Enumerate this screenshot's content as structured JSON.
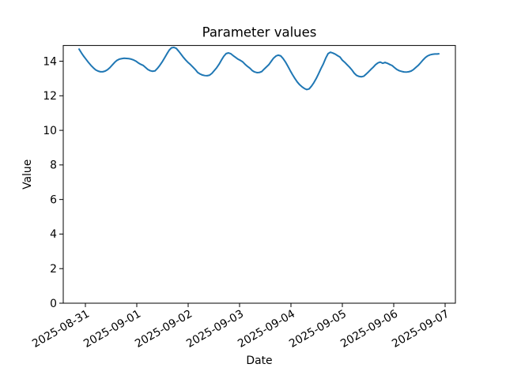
{
  "chart_data": {
    "type": "line",
    "title": "Parameter values",
    "xlabel": "Date",
    "ylabel": "Value",
    "line_color": "#1f77b4",
    "background_color": "#ffffff",
    "grid": false,
    "x_axis": {
      "unit": "days since 2025-08-31 00:00",
      "tick_labels": [
        "2025-08-31",
        "2025-09-01",
        "2025-09-02",
        "2025-09-03",
        "2025-09-04",
        "2025-09-05",
        "2025-09-06",
        "2025-09-07"
      ],
      "tick_positions_days": [
        0,
        1,
        2,
        3,
        4,
        5,
        6,
        7
      ],
      "xlim_days": [
        -0.431,
        7.2
      ],
      "tick_label_rotation_deg": -30
    },
    "y_axis": {
      "tick_values": [
        0,
        2,
        4,
        6,
        8,
        10,
        12,
        14
      ],
      "ylim": [
        0,
        14.91
      ]
    },
    "series": [
      {
        "name": "parameter-values",
        "x_days": [
          -0.123,
          -0.077,
          -0.031,
          0.015,
          0.062,
          0.108,
          0.154,
          0.2,
          0.246,
          0.292,
          0.338,
          0.385,
          0.431,
          0.477,
          0.523,
          0.569,
          0.615,
          0.662,
          0.708,
          0.754,
          0.8,
          0.846,
          0.892,
          0.938,
          0.985,
          1.031,
          1.077,
          1.123,
          1.169,
          1.215,
          1.262,
          1.308,
          1.354,
          1.4,
          1.446,
          1.492,
          1.538,
          1.585,
          1.631,
          1.677,
          1.723,
          1.769,
          1.815,
          1.862,
          1.908,
          1.954,
          2.0,
          2.046,
          2.092,
          2.138,
          2.185,
          2.231,
          2.277,
          2.323,
          2.369,
          2.415,
          2.462,
          2.508,
          2.554,
          2.6,
          2.646,
          2.692,
          2.738,
          2.785,
          2.831,
          2.877,
          2.923,
          2.969,
          3.015,
          3.062,
          3.108,
          3.154,
          3.2,
          3.246,
          3.292,
          3.338,
          3.385,
          3.431,
          3.477,
          3.523,
          3.569,
          3.615,
          3.662,
          3.708,
          3.754,
          3.8,
          3.846,
          3.892,
          3.938,
          3.985,
          4.031,
          4.077,
          4.123,
          4.169,
          4.215,
          4.262,
          4.308,
          4.354,
          4.4,
          4.446,
          4.492,
          4.538,
          4.585,
          4.631,
          4.677,
          4.723,
          4.769,
          4.815,
          4.862,
          4.908,
          4.954,
          5.0,
          5.046,
          5.092,
          5.138,
          5.185,
          5.231,
          5.277,
          5.323,
          5.369,
          5.415,
          5.462,
          5.508,
          5.554,
          5.6,
          5.646,
          5.692,
          5.738,
          5.785,
          5.831,
          5.877,
          5.923,
          5.969,
          6.015,
          6.062,
          6.108,
          6.154,
          6.2,
          6.246,
          6.292,
          6.338,
          6.385,
          6.431,
          6.477,
          6.523,
          6.569,
          6.615,
          6.662,
          6.708,
          6.754,
          6.8,
          6.846,
          6.877
        ],
        "values": [
          14.7,
          14.48,
          14.28,
          14.1,
          13.92,
          13.76,
          13.62,
          13.5,
          13.43,
          13.39,
          13.39,
          13.43,
          13.51,
          13.63,
          13.78,
          13.93,
          14.05,
          14.12,
          14.15,
          14.17,
          14.16,
          14.15,
          14.12,
          14.07,
          14.0,
          13.9,
          13.82,
          13.76,
          13.64,
          13.52,
          13.45,
          13.42,
          13.44,
          13.58,
          13.75,
          13.95,
          14.18,
          14.42,
          14.64,
          14.78,
          14.8,
          14.74,
          14.58,
          14.4,
          14.22,
          14.06,
          13.92,
          13.8,
          13.66,
          13.52,
          13.35,
          13.26,
          13.2,
          13.17,
          13.16,
          13.19,
          13.3,
          13.46,
          13.62,
          13.82,
          14.06,
          14.28,
          14.44,
          14.48,
          14.43,
          14.32,
          14.22,
          14.12,
          14.05,
          13.96,
          13.82,
          13.7,
          13.6,
          13.46,
          13.38,
          13.34,
          13.35,
          13.4,
          13.54,
          13.67,
          13.8,
          13.99,
          14.18,
          14.3,
          14.35,
          14.31,
          14.16,
          13.96,
          13.72,
          13.46,
          13.22,
          13.0,
          12.8,
          12.64,
          12.52,
          12.42,
          12.36,
          12.4,
          12.56,
          12.76,
          13.0,
          13.28,
          13.58,
          13.85,
          14.18,
          14.44,
          14.52,
          14.47,
          14.41,
          14.32,
          14.24,
          14.06,
          13.94,
          13.8,
          13.66,
          13.5,
          13.31,
          13.18,
          13.12,
          13.1,
          13.13,
          13.25,
          13.38,
          13.52,
          13.65,
          13.8,
          13.9,
          13.95,
          13.88,
          13.93,
          13.88,
          13.81,
          13.75,
          13.63,
          13.52,
          13.45,
          13.41,
          13.38,
          13.37,
          13.39,
          13.43,
          13.52,
          13.64,
          13.76,
          13.91,
          14.07,
          14.21,
          14.31,
          14.37,
          14.4,
          14.42,
          14.42,
          14.43
        ]
      }
    ]
  }
}
